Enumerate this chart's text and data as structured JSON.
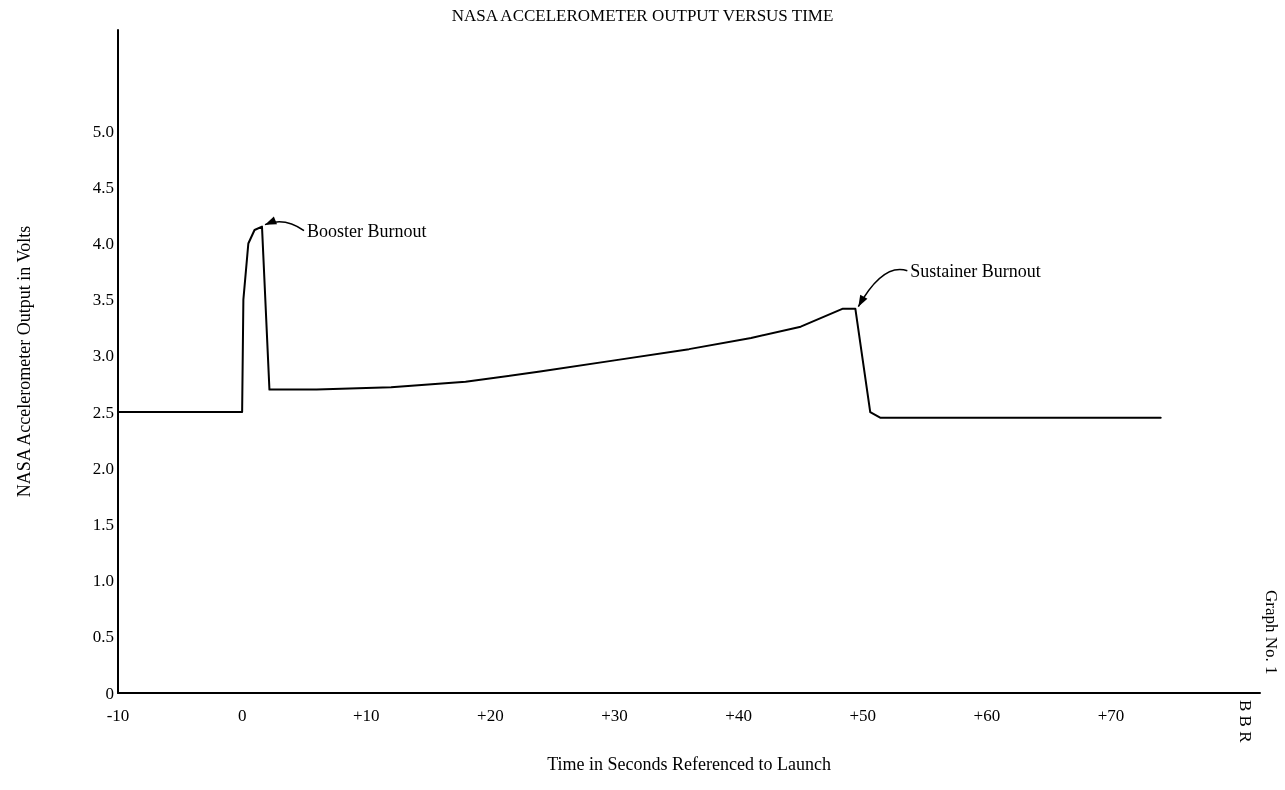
{
  "chart_data": {
    "type": "line",
    "title": "NASA ACCELEROMETER OUTPUT VERSUS TIME",
    "xlabel": "Time in Seconds Referenced to Launch",
    "ylabel": "NASA Accelerometer Output in Volts",
    "series": [
      {
        "color": "#000000",
        "x": [
          -10,
          0,
          0.1,
          0.5,
          1.0,
          1.6,
          2.2,
          6,
          12,
          18,
          24,
          30,
          36,
          41,
          45,
          48.4,
          49.4,
          50.6,
          51.4,
          74
        ],
        "values": [
          2.5,
          2.5,
          3.5,
          4.0,
          4.12,
          4.15,
          2.7,
          2.7,
          2.72,
          2.77,
          2.86,
          2.96,
          3.06,
          3.16,
          3.26,
          3.42,
          3.42,
          2.5,
          2.45,
          2.45
        ]
      }
    ],
    "xlim": [
      -10,
      82
    ],
    "xticks": [
      -10,
      0,
      {
        "value": 10,
        "label": "+10"
      },
      {
        "value": 20,
        "label": "+20"
      },
      {
        "value": 30,
        "label": "+30"
      },
      {
        "value": 40,
        "label": "+40"
      },
      {
        "value": 50,
        "label": "+50"
      },
      {
        "value": 60,
        "label": "+60"
      },
      {
        "value": 70,
        "label": "+70"
      }
    ],
    "ylim": [
      0,
      5.9
    ],
    "yticks": [
      0,
      {
        "value": 0.5,
        "label": "0.5"
      },
      {
        "value": 1,
        "label": "1.0"
      },
      {
        "value": 1.5,
        "label": "1.5"
      },
      {
        "value": 2,
        "label": "2.0"
      },
      {
        "value": 2.5,
        "label": "2.5"
      },
      {
        "value": 3,
        "label": "3.0"
      },
      {
        "value": 3.5,
        "label": "3.5"
      },
      {
        "value": 4,
        "label": "4.0"
      },
      {
        "value": 4.5,
        "label": "4.5"
      },
      {
        "value": 5,
        "label": "5.0"
      }
    ],
    "annotations": [
      {
        "text": "Booster Burnout",
        "x": 1.6,
        "y": 4.15
      },
      {
        "text": "Sustainer Burnout",
        "x": 49.4,
        "y": 3.42
      },
      "Graph No. 1",
      "B B R"
    ],
    "marker": "none",
    "line_style": "solid"
  }
}
